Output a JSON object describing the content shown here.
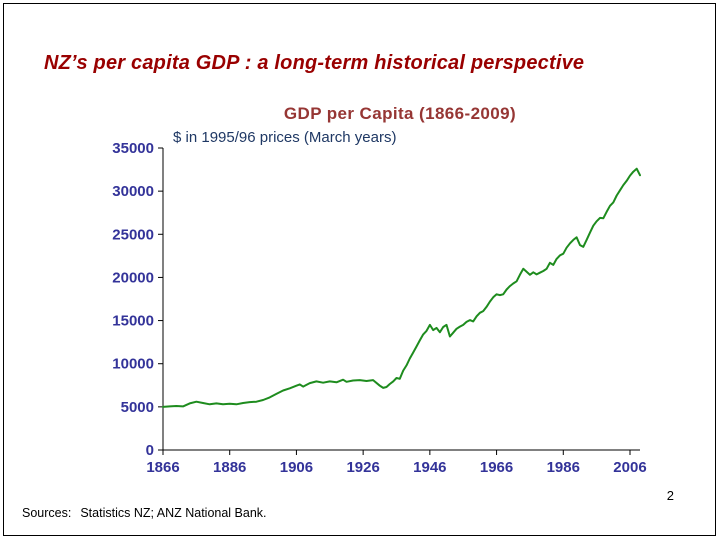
{
  "slide": {
    "title": "NZ’s per capita GDP : a long-term historical perspective",
    "page_number": "2",
    "sources": {
      "label": "Sources:",
      "text": "Statistics NZ; ANZ National Bank."
    }
  },
  "colors": {
    "slide_title": "#990000",
    "chart_title": "#963634",
    "chart_subtitle": "#1F3864",
    "axis_labels": "#333399",
    "axis_lines": "#000000",
    "line": "#1e8c1e",
    "background": "#ffffff"
  },
  "chart_data": {
    "type": "line",
    "title": "GDP per Capita (1866-2009)",
    "subtitle": "$ in 1995/96 prices (March years)",
    "xlabel": "",
    "ylabel": "",
    "xlim": [
      1866,
      2009
    ],
    "ylim": [
      0,
      35000
    ],
    "x_ticks": [
      1866,
      1886,
      1906,
      1926,
      1946,
      1966,
      1986,
      2006
    ],
    "y_ticks": [
      0,
      5000,
      10000,
      15000,
      20000,
      25000,
      30000,
      35000
    ],
    "grid": false,
    "legend": false,
    "axis_label_color": "#333399",
    "line_color": "#1e8c1e",
    "series": [
      {
        "points": [
          [
            1866,
            5000
          ],
          [
            1868,
            5050
          ],
          [
            1870,
            5100
          ],
          [
            1872,
            5050
          ],
          [
            1874,
            5400
          ],
          [
            1876,
            5600
          ],
          [
            1878,
            5450
          ],
          [
            1880,
            5300
          ],
          [
            1882,
            5400
          ],
          [
            1884,
            5300
          ],
          [
            1886,
            5350
          ],
          [
            1888,
            5300
          ],
          [
            1890,
            5450
          ],
          [
            1892,
            5550
          ],
          [
            1894,
            5600
          ],
          [
            1896,
            5800
          ],
          [
            1898,
            6100
          ],
          [
            1900,
            6500
          ],
          [
            1902,
            6900
          ],
          [
            1904,
            7150
          ],
          [
            1906,
            7450
          ],
          [
            1907,
            7600
          ],
          [
            1908,
            7350
          ],
          [
            1910,
            7750
          ],
          [
            1912,
            7950
          ],
          [
            1914,
            7800
          ],
          [
            1916,
            7950
          ],
          [
            1918,
            7850
          ],
          [
            1920,
            8150
          ],
          [
            1921,
            7900
          ],
          [
            1923,
            8050
          ],
          [
            1925,
            8100
          ],
          [
            1927,
            8000
          ],
          [
            1929,
            8100
          ],
          [
            1931,
            7450
          ],
          [
            1932,
            7200
          ],
          [
            1933,
            7300
          ],
          [
            1934,
            7650
          ],
          [
            1935,
            7950
          ],
          [
            1936,
            8350
          ],
          [
            1937,
            8250
          ],
          [
            1938,
            9200
          ],
          [
            1939,
            9800
          ],
          [
            1940,
            10600
          ],
          [
            1941,
            11300
          ],
          [
            1942,
            12000
          ],
          [
            1943,
            12700
          ],
          [
            1944,
            13400
          ],
          [
            1945,
            13800
          ],
          [
            1946,
            14500
          ],
          [
            1947,
            13900
          ],
          [
            1948,
            14150
          ],
          [
            1949,
            13650
          ],
          [
            1950,
            14250
          ],
          [
            1951,
            14500
          ],
          [
            1952,
            13150
          ],
          [
            1953,
            13600
          ],
          [
            1954,
            14050
          ],
          [
            1955,
            14300
          ],
          [
            1956,
            14500
          ],
          [
            1957,
            14850
          ],
          [
            1958,
            15050
          ],
          [
            1959,
            14900
          ],
          [
            1960,
            15500
          ],
          [
            1961,
            15900
          ],
          [
            1962,
            16100
          ],
          [
            1963,
            16600
          ],
          [
            1964,
            17200
          ],
          [
            1965,
            17700
          ],
          [
            1966,
            18050
          ],
          [
            1967,
            17950
          ],
          [
            1968,
            18050
          ],
          [
            1969,
            18600
          ],
          [
            1970,
            19000
          ],
          [
            1971,
            19300
          ],
          [
            1972,
            19550
          ],
          [
            1973,
            20300
          ],
          [
            1974,
            21000
          ],
          [
            1975,
            20650
          ],
          [
            1976,
            20300
          ],
          [
            1977,
            20600
          ],
          [
            1978,
            20350
          ],
          [
            1979,
            20550
          ],
          [
            1980,
            20750
          ],
          [
            1981,
            21000
          ],
          [
            1982,
            21700
          ],
          [
            1983,
            21450
          ],
          [
            1984,
            22150
          ],
          [
            1985,
            22550
          ],
          [
            1986,
            22750
          ],
          [
            1987,
            23450
          ],
          [
            1988,
            23950
          ],
          [
            1989,
            24350
          ],
          [
            1990,
            24650
          ],
          [
            1991,
            23750
          ],
          [
            1992,
            23550
          ],
          [
            1993,
            24350
          ],
          [
            1994,
            25200
          ],
          [
            1995,
            26000
          ],
          [
            1996,
            26500
          ],
          [
            1997,
            26900
          ],
          [
            1998,
            26850
          ],
          [
            1999,
            27600
          ],
          [
            2000,
            28300
          ],
          [
            2001,
            28700
          ],
          [
            2002,
            29500
          ],
          [
            2003,
            30100
          ],
          [
            2004,
            30700
          ],
          [
            2005,
            31200
          ],
          [
            2006,
            31800
          ],
          [
            2007,
            32250
          ],
          [
            2008,
            32600
          ],
          [
            2009,
            31850
          ]
        ]
      }
    ]
  }
}
